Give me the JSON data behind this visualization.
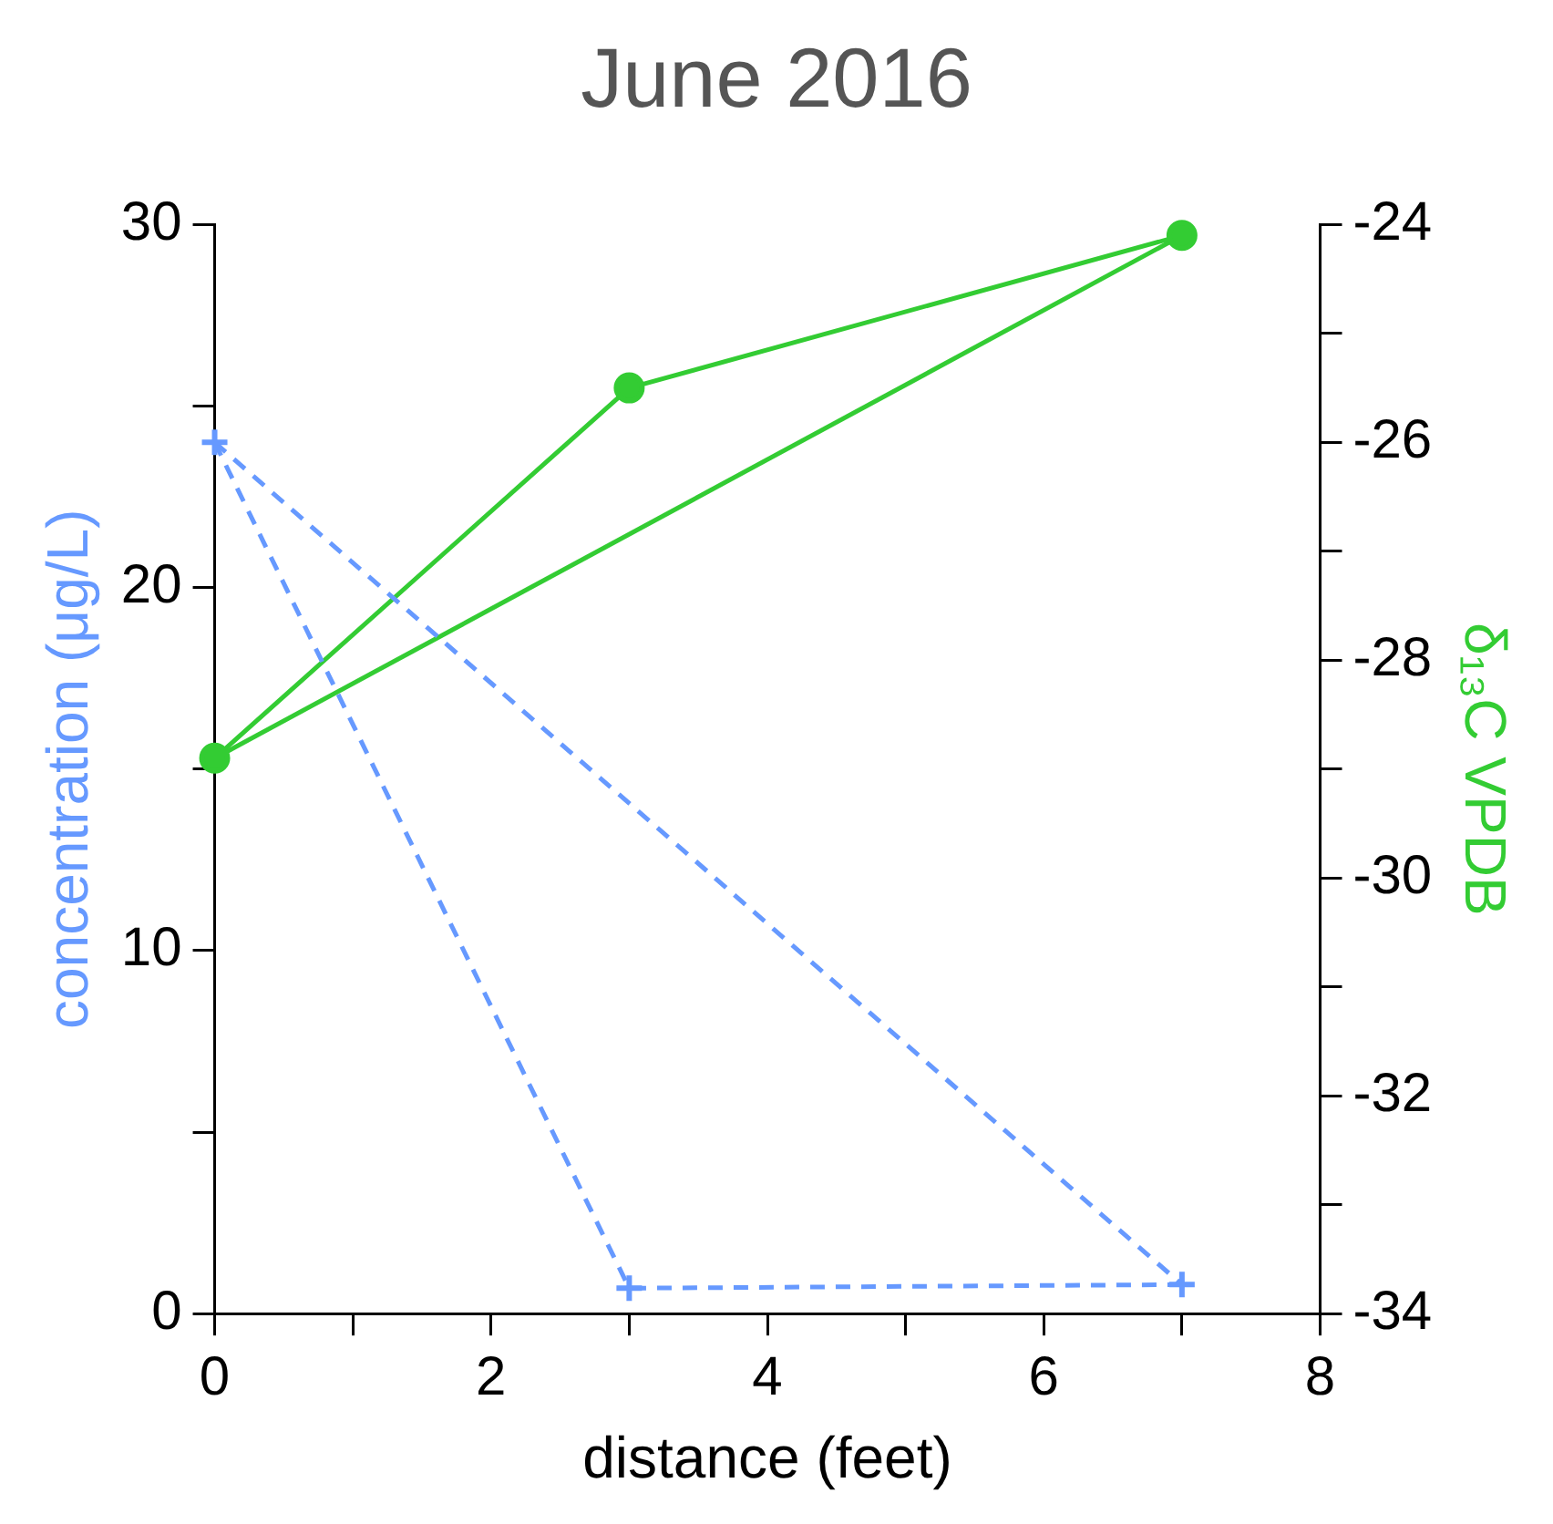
{
  "chart_data": {
    "type": "line",
    "title": "June 2016",
    "xlabel": "distance (feet)",
    "ylabel": "concentration (μg/L)",
    "y2label": "δ₁₃C VPDB",
    "xlim": [
      0,
      8
    ],
    "xticks": [
      0,
      {
        "value": 1,
        "label": null
      },
      2,
      {
        "value": 3,
        "label": null
      },
      4,
      {
        "value": 5,
        "label": null
      },
      6,
      {
        "value": 7,
        "label": null
      },
      8
    ],
    "ylim": [
      0,
      30
    ],
    "yticks": [
      0,
      {
        "value": 5,
        "label": null
      },
      10,
      {
        "value": 15,
        "label": null
      },
      20,
      {
        "value": 25,
        "label": null
      },
      30
    ],
    "y2lim": [
      -34,
      -24
    ],
    "y2ticks": [
      -34,
      {
        "value": -33,
        "label": null
      },
      -32,
      {
        "value": -31,
        "label": null
      },
      -30,
      {
        "value": -29,
        "label": null
      },
      -28,
      {
        "value": -27,
        "label": null
      },
      -26,
      {
        "value": -25,
        "label": null
      },
      -24
    ],
    "grid": false,
    "legend": false,
    "series": [
      {
        "color": "#6699ff",
        "x": [
          0,
          3,
          7
        ],
        "values": [
          24,
          0.7,
          0.8
        ],
        "marker": "cross",
        "line_style": "dashed"
      },
      {
        "color": "#6699ff",
        "x": [
          0,
          7
        ],
        "values": [
          24,
          0.8
        ],
        "marker": "none",
        "line_style": "dashed"
      },
      {
        "color": "#33cc33",
        "x": [
          0,
          3,
          7
        ],
        "values": [
          -28.9,
          -25.5,
          -24.1
        ],
        "marker": "circle",
        "line_style": "solid",
        "axis": "y2"
      },
      {
        "color": "#33cc33",
        "x": [
          0,
          7
        ],
        "values": [
          -28.9,
          -24.1
        ],
        "marker": "none",
        "line_style": "solid",
        "axis": "y2"
      }
    ]
  }
}
